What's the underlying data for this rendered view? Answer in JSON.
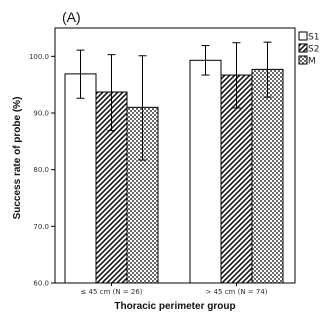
{
  "chart_data": {
    "type": "bar",
    "panel_label": "(A)",
    "xlabel": "Thoracic perimeter group",
    "ylabel": "Success rate of probe (%)",
    "ylim": [
      60.0,
      105.0
    ],
    "yticks": [
      "60.0",
      "70.0",
      "80.0",
      "90.0",
      "100.0"
    ],
    "ytick_values": [
      60,
      70,
      80,
      90,
      100
    ],
    "categories": [
      "≤ 45 cm (N = 26)",
      "> 45 cm (N = 74)"
    ],
    "legend_position": "top-right",
    "series": [
      {
        "name": "S1",
        "pattern": "white",
        "values": [
          96.9,
          99.3
        ],
        "err_low": [
          92.6,
          96.7
        ],
        "err_high": [
          101.1,
          101.9
        ]
      },
      {
        "name": "S2",
        "pattern": "hatch",
        "values": [
          93.7,
          96.7
        ],
        "err_low": [
          86.9,
          90.9
        ],
        "err_high": [
          100.3,
          102.4
        ]
      },
      {
        "name": "M",
        "pattern": "checker",
        "values": [
          91.0,
          97.7
        ],
        "err_low": [
          81.7,
          92.8
        ],
        "err_high": [
          100.1,
          102.5
        ]
      }
    ]
  }
}
